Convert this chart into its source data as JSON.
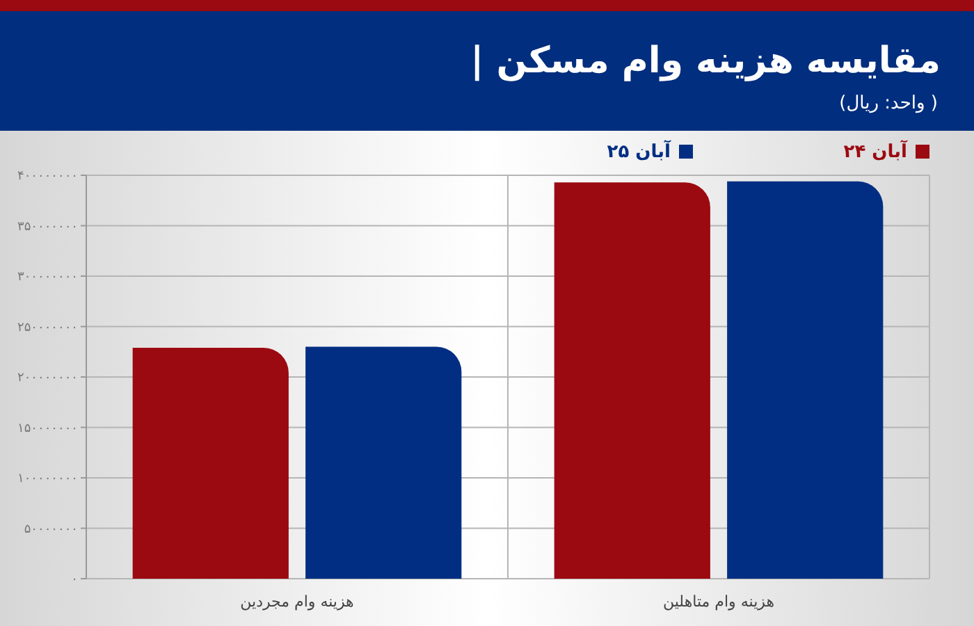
{
  "chart_data": {
    "type": "bar",
    "title": "| مقایسه هزینه وام مسکن",
    "subtitle": "(واحد: ریال )",
    "categories": [
      "هزینه وام مجردین",
      "هزینه وام متاهلین"
    ],
    "series": [
      {
        "name": "۲۴ آبان",
        "color": "#9b0a10",
        "values": [
          229000000,
          393000000
        ]
      },
      {
        "name": "۲۵ آبان",
        "color": "#012e82",
        "values": [
          230000000,
          394000000
        ]
      }
    ],
    "ylim": [
      0,
      400000000
    ],
    "yticks": [
      {
        "value": 0,
        "label": "۰"
      },
      {
        "value": 50000000,
        "label": "۵۰۰۰۰۰۰۰"
      },
      {
        "value": 100000000,
        "label": "۱۰۰۰۰۰۰۰۰"
      },
      {
        "value": 150000000,
        "label": "۱۵۰۰۰۰۰۰۰"
      },
      {
        "value": 200000000,
        "label": "۲۰۰۰۰۰۰۰۰"
      },
      {
        "value": 250000000,
        "label": "۲۵۰۰۰۰۰۰۰"
      },
      {
        "value": 300000000,
        "label": "۳۰۰۰۰۰۰۰۰"
      },
      {
        "value": 350000000,
        "label": "۳۵۰۰۰۰۰۰۰"
      },
      {
        "value": 400000000,
        "label": "۴۰۰۰۰۰۰۰۰"
      }
    ],
    "grid": true,
    "legend": "top right"
  }
}
